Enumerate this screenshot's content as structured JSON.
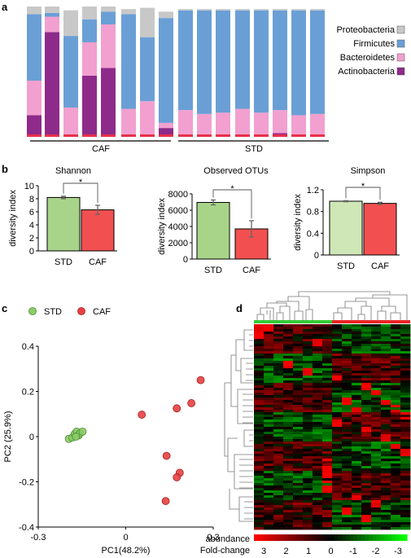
{
  "panels": [
    "a",
    "b",
    "c",
    "d"
  ],
  "colors": {
    "Proteobacteria": "#c8c8c8",
    "Firmicutes": "#6a9fd6",
    "Bacteroidetes": "#f2a0cf",
    "Actinobacteria": "#8e2a8a",
    "std": "#a8d48a",
    "std_light": "#cfe7b6",
    "caf": "#f25050",
    "green_dot": "#8ccc6a",
    "red_dot": "#e84040"
  },
  "chart_data": [
    {
      "type": "bar",
      "panel": "a",
      "stacked": true,
      "legend": [
        "Proteobacteria",
        "Firmicutes",
        "Bacteroidetes",
        "Actinobacteria"
      ],
      "groups": [
        "CAF",
        "STD"
      ],
      "samples": [
        {
          "group": "CAF",
          "Proteobacteria": 0.06,
          "Firmicutes": 0.52,
          "Bacteroidetes": 0.27,
          "Actinobacteria": 0.15
        },
        {
          "group": "CAF",
          "Proteobacteria": 0.05,
          "Firmicutes": 0.03,
          "Bacteroidetes": 0.12,
          "Actinobacteria": 0.8
        },
        {
          "group": "CAF",
          "Proteobacteria": 0.2,
          "Firmicutes": 0.56,
          "Bacteroidetes": 0.21,
          "Actinobacteria": 0.0
        },
        {
          "group": "CAF",
          "Proteobacteria": 0.1,
          "Firmicutes": 0.18,
          "Bacteroidetes": 0.26,
          "Actinobacteria": 0.46
        },
        {
          "group": "CAF",
          "Proteobacteria": 0.04,
          "Firmicutes": 0.1,
          "Bacteroidetes": 0.34,
          "Actinobacteria": 0.52
        },
        {
          "group": "CAF",
          "Proteobacteria": 0.04,
          "Firmicutes": 0.74,
          "Bacteroidetes": 0.2,
          "Actinobacteria": 0.0
        },
        {
          "group": "CAF",
          "Proteobacteria": 0.23,
          "Firmicutes": 0.5,
          "Bacteroidetes": 0.26,
          "Actinobacteria": 0.0
        },
        {
          "group": "CAF",
          "Proteobacteria": 0.05,
          "Firmicutes": 0.82,
          "Bacteroidetes": 0.04,
          "Actinobacteria": 0.05
        },
        {
          "group": "STD",
          "Proteobacteria": 0.01,
          "Firmicutes": 0.78,
          "Bacteroidetes": 0.19,
          "Actinobacteria": 0.0
        },
        {
          "group": "STD",
          "Proteobacteria": 0.01,
          "Firmicutes": 0.81,
          "Bacteroidetes": 0.16,
          "Actinobacteria": 0.0
        },
        {
          "group": "STD",
          "Proteobacteria": 0.01,
          "Firmicutes": 0.8,
          "Bacteroidetes": 0.17,
          "Actinobacteria": 0.0
        },
        {
          "group": "STD",
          "Proteobacteria": 0.01,
          "Firmicutes": 0.77,
          "Bacteroidetes": 0.2,
          "Actinobacteria": 0.0
        },
        {
          "group": "STD",
          "Proteobacteria": 0.01,
          "Firmicutes": 0.8,
          "Bacteroidetes": 0.17,
          "Actinobacteria": 0.0
        },
        {
          "group": "STD",
          "Proteobacteria": 0.01,
          "Firmicutes": 0.78,
          "Bacteroidetes": 0.18,
          "Actinobacteria": 0.01
        },
        {
          "group": "STD",
          "Proteobacteria": 0.01,
          "Firmicutes": 0.82,
          "Bacteroidetes": 0.15,
          "Actinobacteria": 0.0
        },
        {
          "group": "STD",
          "Proteobacteria": 0.01,
          "Firmicutes": 0.81,
          "Bacteroidetes": 0.16,
          "Actinobacteria": 0.0
        }
      ]
    },
    {
      "type": "bar",
      "panel": "b",
      "title": "Shannon",
      "ylabel": "diversity index",
      "categories": [
        "STD",
        "CAF"
      ],
      "values": [
        8.2,
        6.3
      ],
      "errors": [
        0.2,
        0.7
      ],
      "ylim": [
        0,
        10
      ],
      "yticks": [
        0,
        2,
        4,
        6,
        8,
        10
      ],
      "sig": "*"
    },
    {
      "type": "bar",
      "panel": "b",
      "title": "Observed OTUs",
      "ylabel": "diversity index",
      "categories": [
        "STD",
        "CAF"
      ],
      "values": [
        6950,
        3700
      ],
      "errors": [
        300,
        1000
      ],
      "ylim": [
        0,
        8000
      ],
      "yticks": [
        0,
        2000,
        4000,
        6000,
        8000
      ],
      "sig": "*"
    },
    {
      "type": "bar",
      "panel": "b",
      "title": "Simpson",
      "ylabel": "diversity index",
      "categories": [
        "STD",
        "CAF"
      ],
      "values": [
        0.99,
        0.95
      ],
      "errors": [
        0.01,
        0.02
      ],
      "ylim": [
        0,
        1.2
      ],
      "yticks": [
        "0",
        "0.4",
        "0.8",
        "1.2"
      ],
      "sig": "*"
    },
    {
      "type": "scatter",
      "panel": "c",
      "xlabel": "PC1(48.2%)",
      "ylabel": "PC2 (25.9%)",
      "xlim": [
        -0.3,
        0.3
      ],
      "ylim": [
        -0.4,
        0.4
      ],
      "xticks": [
        "-0.3",
        "0",
        "0.3"
      ],
      "yticks": [
        "-0.4",
        "-0.2",
        "0",
        "0.2",
        "0.4"
      ],
      "legend": [
        "STD",
        "CAF"
      ],
      "series": [
        {
          "name": "STD",
          "points": [
            [
              -0.195,
              -0.01
            ],
            [
              -0.183,
              -0.004
            ],
            [
              -0.175,
              0.012
            ],
            [
              -0.168,
              0.022
            ],
            [
              -0.162,
              0.005
            ],
            [
              -0.157,
              0.015
            ],
            [
              -0.148,
              0.022
            ],
            [
              -0.171,
              0.0
            ]
          ]
        },
        {
          "name": "CAF",
          "points": [
            [
              0.055,
              0.097
            ],
            [
              0.257,
              0.25
            ],
            [
              0.225,
              0.148
            ],
            [
              0.175,
              0.125
            ],
            [
              0.14,
              -0.085
            ],
            [
              0.185,
              -0.16
            ],
            [
              0.175,
              -0.18
            ],
            [
              0.137,
              -0.285
            ]
          ]
        }
      ]
    },
    {
      "type": "heatmap",
      "panel": "d",
      "legend_title": "abundance\nFold-change",
      "legend_label_1": "abundance",
      "legend_label_2": "Fold-change",
      "scale_ticks": [
        "3",
        "2",
        "1",
        "0",
        "-1",
        "-2",
        "-3"
      ],
      "group_bar": [
        "STD",
        "CAF"
      ]
    }
  ],
  "labels": {
    "caf": "CAF",
    "std": "STD"
  }
}
